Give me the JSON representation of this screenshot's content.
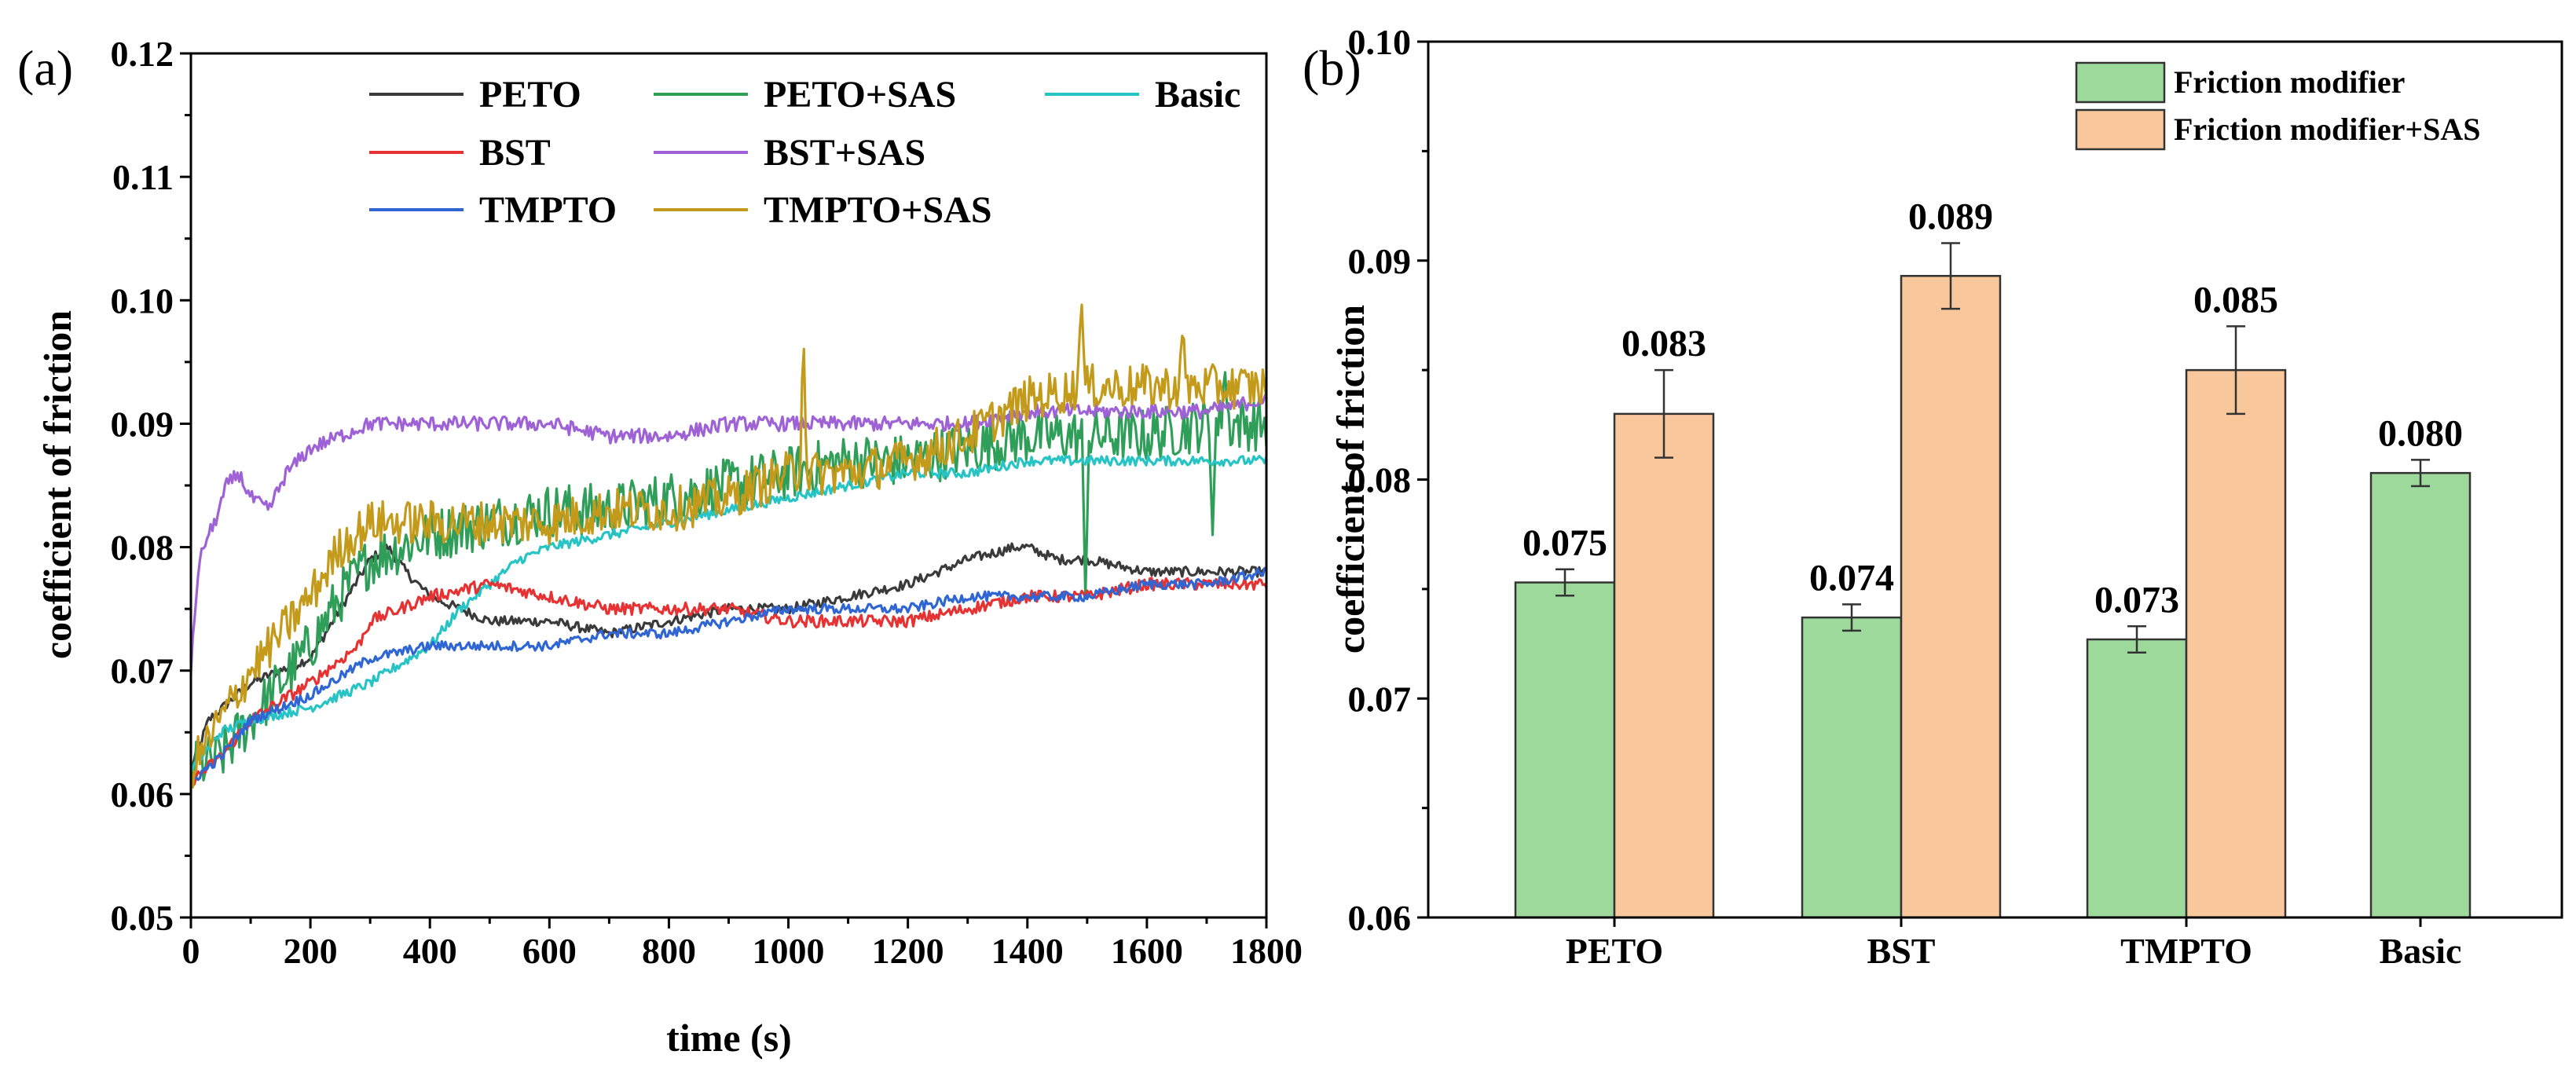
{
  "chart_data": [
    {
      "panel": "(a)",
      "type": "line",
      "xlabel": "time (s)",
      "ylabel": "coefficient of friction",
      "xlim": [
        0,
        1800
      ],
      "ylim": [
        0.05,
        0.12
      ],
      "x_ticks": [
        0,
        200,
        400,
        600,
        800,
        1000,
        1200,
        1400,
        1600,
        1800
      ],
      "y_ticks": [
        "0.05",
        "0.06",
        "0.07",
        "0.08",
        "0.09",
        "0.10",
        "0.11",
        "0.12"
      ],
      "legend": "top, three columns",
      "grid": false,
      "series": [
        {
          "name": "PETO",
          "color": "#3a3a3a",
          "noise": 0.0004,
          "x": [
            0,
            30,
            100,
            200,
            250,
            300,
            330,
            360,
            400,
            450,
            500,
            600,
            700,
            800,
            900,
            1000,
            1100,
            1200,
            1300,
            1380,
            1400,
            1450,
            1500,
            1600,
            1700,
            1800
          ],
          "y": [
            0.062,
            0.066,
            0.069,
            0.071,
            0.075,
            0.079,
            0.08,
            0.078,
            0.076,
            0.075,
            0.074,
            0.074,
            0.073,
            0.074,
            0.075,
            0.075,
            0.076,
            0.077,
            0.079,
            0.08,
            0.08,
            0.079,
            0.079,
            0.078,
            0.078,
            0.078
          ]
        },
        {
          "name": "PETO+SAS",
          "color": "#2e9e58",
          "noise": 0.0022,
          "x": [
            0,
            50,
            100,
            150,
            200,
            250,
            300,
            350,
            400,
            500,
            600,
            700,
            800,
            900,
            1000,
            1100,
            1200,
            1300,
            1400,
            1500,
            1600,
            1700,
            1800
          ],
          "y": [
            0.062,
            0.063,
            0.066,
            0.069,
            0.072,
            0.076,
            0.079,
            0.08,
            0.081,
            0.082,
            0.083,
            0.083,
            0.084,
            0.085,
            0.086,
            0.087,
            0.087,
            0.088,
            0.089,
            0.089,
            0.089,
            0.09,
            0.09
          ]
        },
        {
          "name": "Basic",
          "color": "#26c4c4",
          "noise": 0.0004,
          "x": [
            0,
            50,
            100,
            200,
            300,
            400,
            450,
            500,
            550,
            600,
            700,
            800,
            900,
            1000,
            1100,
            1200,
            1300,
            1400,
            1500,
            1600,
            1700,
            1800
          ],
          "y": [
            0.062,
            0.065,
            0.066,
            0.067,
            0.069,
            0.072,
            0.075,
            0.077,
            0.079,
            0.08,
            0.081,
            0.082,
            0.083,
            0.084,
            0.085,
            0.086,
            0.086,
            0.087,
            0.087,
            0.087,
            0.087,
            0.087
          ]
        },
        {
          "name": "BST",
          "color": "#e63232",
          "noise": 0.0005,
          "x": [
            0,
            50,
            100,
            200,
            280,
            300,
            400,
            500,
            600,
            700,
            800,
            900,
            1000,
            1100,
            1200,
            1300,
            1400,
            1500,
            1600,
            1700,
            1800
          ],
          "y": [
            0.061,
            0.063,
            0.066,
            0.069,
            0.072,
            0.074,
            0.076,
            0.077,
            0.076,
            0.075,
            0.075,
            0.075,
            0.074,
            0.074,
            0.074,
            0.075,
            0.076,
            0.076,
            0.077,
            0.077,
            0.077
          ]
        },
        {
          "name": "BST+SAS",
          "color": "#9e62d6",
          "noise": 0.0006,
          "x": [
            0,
            10,
            20,
            40,
            60,
            80,
            100,
            130,
            160,
            200,
            250,
            300,
            400,
            500,
            600,
            700,
            800,
            900,
            1000,
            1100,
            1200,
            1300,
            1400,
            1500,
            1600,
            1700,
            1800
          ],
          "y": [
            0.07,
            0.077,
            0.08,
            0.082,
            0.085,
            0.086,
            0.084,
            0.083,
            0.086,
            0.088,
            0.089,
            0.09,
            0.09,
            0.09,
            0.09,
            0.089,
            0.089,
            0.09,
            0.09,
            0.09,
            0.09,
            0.09,
            0.091,
            0.091,
            0.091,
            0.091,
            0.092
          ]
        },
        {
          "name": "TMPTO",
          "color": "#2f66d4",
          "noise": 0.0004,
          "x": [
            0,
            50,
            100,
            200,
            300,
            400,
            500,
            600,
            700,
            800,
            900,
            1000,
            1100,
            1200,
            1300,
            1400,
            1500,
            1600,
            1700,
            1800
          ],
          "y": [
            0.061,
            0.063,
            0.066,
            0.068,
            0.071,
            0.072,
            0.072,
            0.072,
            0.073,
            0.073,
            0.074,
            0.075,
            0.075,
            0.075,
            0.076,
            0.076,
            0.076,
            0.077,
            0.077,
            0.078
          ]
        },
        {
          "name": "TMPTO+SAS",
          "color": "#c49a1a",
          "noise": 0.0018,
          "x": [
            0,
            50,
            100,
            150,
            200,
            250,
            300,
            400,
            500,
            600,
            700,
            800,
            900,
            1000,
            1100,
            1200,
            1300,
            1400,
            1500,
            1600,
            1700,
            1800
          ],
          "y": [
            0.062,
            0.066,
            0.07,
            0.073,
            0.076,
            0.08,
            0.082,
            0.082,
            0.082,
            0.082,
            0.083,
            0.083,
            0.084,
            0.086,
            0.086,
            0.087,
            0.089,
            0.092,
            0.093,
            0.093,
            0.093,
            0.093
          ]
        }
      ],
      "spikes": [
        {
          "series": "PETO+SAS",
          "x": 1497,
          "y": 0.076
        },
        {
          "series": "PETO+SAS",
          "x": 1710,
          "y": 0.081
        },
        {
          "series": "PETO+SAS",
          "x": 1730,
          "y": 0.095
        },
        {
          "series": "TMPTO+SAS",
          "x": 1025,
          "y": 0.098
        },
        {
          "series": "TMPTO+SAS",
          "x": 1490,
          "y": 0.101
        },
        {
          "series": "TMPTO+SAS",
          "x": 1660,
          "y": 0.098
        }
      ]
    },
    {
      "panel": "(b)",
      "type": "bar",
      "ylabel": "coefficient of friction",
      "ylim": [
        0.06,
        0.1
      ],
      "y_ticks": [
        "0.06",
        "0.07",
        "0.08",
        "0.09",
        "0.10"
      ],
      "categories": [
        "PETO",
        "BST",
        "TMPTO",
        "Basic"
      ],
      "legend": "top-right",
      "grid": false,
      "series": [
        {
          "name": "Friction modifier",
          "color": "#9ed99c",
          "values": [
            0.0753,
            0.0737,
            0.0727,
            0.0803
          ],
          "errors": [
            0.0006,
            0.0006,
            0.0006,
            0.0006
          ],
          "labels": [
            "0.075",
            "0.074",
            "0.073",
            "0.080"
          ]
        },
        {
          "name": "Friction modifier+SAS",
          "color": "#f8c79c",
          "values": [
            0.083,
            0.0893,
            0.085,
            null
          ],
          "errors": [
            0.002,
            0.0015,
            0.002,
            null
          ],
          "labels": [
            "0.083",
            "0.089",
            "0.085",
            ""
          ]
        }
      ]
    }
  ]
}
